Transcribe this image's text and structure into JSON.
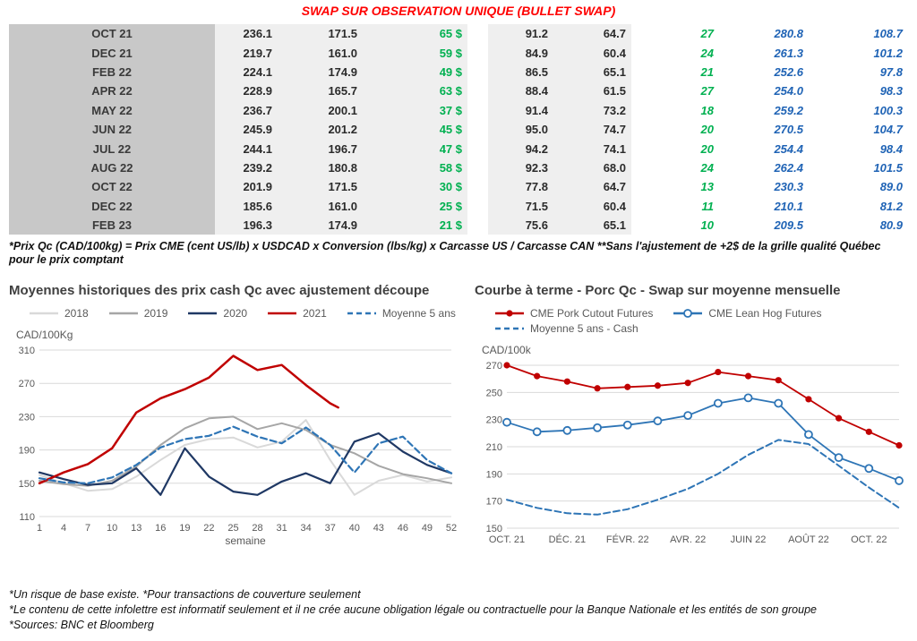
{
  "page": {
    "title": "SWAP SUR OBSERVATION UNIQUE (BULLET SWAP)"
  },
  "colors": {
    "title_red": "#FF0000",
    "green": "#00B050",
    "blue_italic": "#1F63B5",
    "month_column_bg": "#C8C8C8",
    "row_bg": "#EFEFEF",
    "series_2018": "#D9D9D9",
    "series_2019": "#A6A6A6",
    "series_2020": "#1F3864",
    "series_2021": "#C00000",
    "series_blue": "#2E75B6"
  },
  "swap_table": {
    "rows": [
      {
        "month": "OCT 21",
        "col1": "236.1",
        "col2": "171.5",
        "col3": "65 $",
        "col4": "91.2",
        "col5": "64.7",
        "col6": "27",
        "col7": "280.8",
        "col8": "108.7"
      },
      {
        "month": "DEC 21",
        "col1": "219.7",
        "col2": "161.0",
        "col3": "59 $",
        "col4": "84.9",
        "col5": "60.4",
        "col6": "24",
        "col7": "261.3",
        "col8": "101.2"
      },
      {
        "month": "FEB 22",
        "col1": "224.1",
        "col2": "174.9",
        "col3": "49 $",
        "col4": "86.5",
        "col5": "65.1",
        "col6": "21",
        "col7": "252.6",
        "col8": "97.8"
      },
      {
        "month": "APR 22",
        "col1": "228.9",
        "col2": "165.7",
        "col3": "63 $",
        "col4": "88.4",
        "col5": "61.5",
        "col6": "27",
        "col7": "254.0",
        "col8": "98.3"
      },
      {
        "month": "MAY 22",
        "col1": "236.7",
        "col2": "200.1",
        "col3": "37 $",
        "col4": "91.4",
        "col5": "73.2",
        "col6": "18",
        "col7": "259.2",
        "col8": "100.3"
      },
      {
        "month": "JUN 22",
        "col1": "245.9",
        "col2": "201.2",
        "col3": "45 $",
        "col4": "95.0",
        "col5": "74.7",
        "col6": "20",
        "col7": "270.5",
        "col8": "104.7"
      },
      {
        "month": "JUL 22",
        "col1": "244.1",
        "col2": "196.7",
        "col3": "47 $",
        "col4": "94.2",
        "col5": "74.1",
        "col6": "20",
        "col7": "254.4",
        "col8": "98.4"
      },
      {
        "month": "AUG 22",
        "col1": "239.2",
        "col2": "180.8",
        "col3": "58 $",
        "col4": "92.3",
        "col5": "68.0",
        "col6": "24",
        "col7": "262.4",
        "col8": "101.5"
      },
      {
        "month": "OCT 22",
        "col1": "201.9",
        "col2": "171.5",
        "col3": "30 $",
        "col4": "77.8",
        "col5": "64.7",
        "col6": "13",
        "col7": "230.3",
        "col8": "89.0"
      },
      {
        "month": "DEC 22",
        "col1": "185.6",
        "col2": "161.0",
        "col3": "25 $",
        "col4": "71.5",
        "col5": "60.4",
        "col6": "11",
        "col7": "210.1",
        "col8": "81.2"
      },
      {
        "month": "FEB 23",
        "col1": "196.3",
        "col2": "174.9",
        "col3": "21 $",
        "col4": "75.6",
        "col5": "65.1",
        "col6": "10",
        "col7": "209.5",
        "col8": "80.9"
      }
    ]
  },
  "notes": {
    "table_note": "*Prix Qc (CAD/100kg) = Prix CME (cent US/lb) x USDCAD x Conversion (lbs/kg) x Carcasse US / Carcasse CAN **Sans l'ajustement de +2$ de la grille qualité Québec pour le prix comptant"
  },
  "chart_data": [
    {
      "type": "line",
      "title": "Moyennes historiques des prix cash Qc avec ajustement découpe",
      "ylabel": "CAD/100Kg",
      "xlabel": "semaine",
      "ylim": [
        110,
        310
      ],
      "yticks": [
        110,
        150,
        190,
        230,
        270,
        310
      ],
      "xlim": [
        1,
        52
      ],
      "xticks": [
        1,
        4,
        7,
        10,
        13,
        16,
        19,
        22,
        25,
        28,
        31,
        34,
        37,
        40,
        43,
        46,
        49,
        52
      ],
      "grid": "horizontal",
      "legend_position": "top",
      "series": [
        {
          "name": "2018",
          "color": "#D9D9D9",
          "width": 2,
          "x": [
            1,
            4,
            7,
            10,
            13,
            16,
            19,
            22,
            25,
            28,
            31,
            34,
            37,
            40,
            43,
            46,
            49,
            52
          ],
          "values": [
            160,
            150,
            141,
            143,
            158,
            178,
            196,
            203,
            205,
            193,
            200,
            226,
            178,
            136,
            153,
            160,
            152,
            157
          ]
        },
        {
          "name": "2019",
          "color": "#A6A6A6",
          "width": 2,
          "x": [
            1,
            4,
            7,
            10,
            13,
            16,
            19,
            22,
            25,
            28,
            31,
            34,
            37,
            40,
            43,
            46,
            49,
            52
          ],
          "values": [
            153,
            149,
            147,
            153,
            170,
            196,
            216,
            228,
            230,
            215,
            222,
            214,
            196,
            186,
            171,
            161,
            156,
            150
          ]
        },
        {
          "name": "2020",
          "color": "#1F3864",
          "width": 2.2,
          "x": [
            1,
            4,
            7,
            10,
            13,
            16,
            19,
            22,
            25,
            28,
            31,
            34,
            37,
            40,
            43,
            46,
            49,
            52
          ],
          "values": [
            163,
            155,
            148,
            150,
            168,
            136,
            192,
            158,
            140,
            136,
            152,
            162,
            150,
            200,
            210,
            188,
            172,
            162
          ]
        },
        {
          "name": "2021",
          "color": "#C00000",
          "width": 2.5,
          "x": [
            1,
            4,
            7,
            10,
            13,
            16,
            19,
            22,
            25,
            28,
            31,
            34,
            37,
            38
          ],
          "values": [
            150,
            163,
            173,
            192,
            235,
            252,
            263,
            277,
            303,
            286,
            292,
            268,
            246,
            241
          ]
        },
        {
          "name": "Moyenne 5 ans",
          "color": "#2E75B6",
          "width": 2.2,
          "dash": true,
          "x": [
            1,
            4,
            7,
            10,
            13,
            16,
            19,
            22,
            25,
            28,
            31,
            34,
            37,
            40,
            43,
            46,
            49,
            52
          ],
          "values": [
            156,
            151,
            150,
            157,
            172,
            193,
            203,
            207,
            218,
            206,
            198,
            217,
            196,
            163,
            198,
            206,
            178,
            162
          ]
        }
      ]
    },
    {
      "type": "line",
      "title": "Courbe à terme - Porc Qc - Swap sur moyenne mensuelle",
      "ylabel": "CAD/100k",
      "xlabel": "",
      "ylim": [
        150,
        270
      ],
      "yticks": [
        150,
        170,
        190,
        210,
        230,
        250,
        270
      ],
      "xlim": [
        0,
        13
      ],
      "xtick_positions": [
        0,
        2,
        4,
        6,
        8,
        10,
        12
      ],
      "xticks": [
        "OCT. 21",
        "DÉC. 21",
        "FÉVR. 22",
        "AVR. 22",
        "JUIN 22",
        "AOÛT 22",
        "OCT. 22"
      ],
      "grid": "horizontal",
      "legend_position": "top",
      "series": [
        {
          "name": "CME Pork Cutout Futures",
          "color": "#C00000",
          "width": 1.8,
          "marker": "filled",
          "values": [
            270,
            262,
            258,
            253,
            254,
            255,
            257,
            265,
            262,
            259,
            245,
            231,
            221,
            211
          ]
        },
        {
          "name": "CME Lean Hog Futures",
          "color": "#2E75B6",
          "width": 1.8,
          "marker": "open",
          "values": [
            228,
            221,
            222,
            224,
            226,
            229,
            233,
            242,
            246,
            242,
            219,
            202,
            194,
            185
          ]
        },
        {
          "name": "Moyenne 5 ans - Cash",
          "color": "#2E75B6",
          "width": 2,
          "dash": true,
          "values": [
            171,
            165,
            161,
            160,
            164,
            171,
            179,
            190,
            204,
            215,
            212,
            196,
            180,
            165
          ]
        }
      ]
    }
  ],
  "footer": {
    "line1": "*Un risque de base existe. *Pour transactions de couverture seulement",
    "line2": "*Le contenu de cette infolettre est informatif seulement et il ne crée aucune obligation légale ou contractuelle pour la Banque Nationale et les entités de son groupe",
    "line3": "*Sources: BNC et Bloomberg"
  }
}
